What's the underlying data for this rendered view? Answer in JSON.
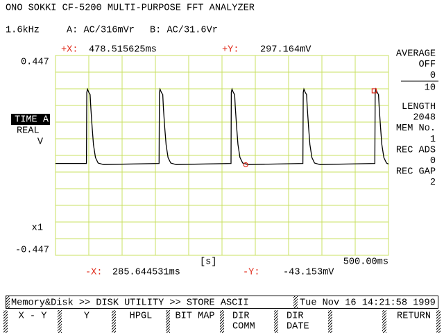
{
  "header": {
    "title": "ONO SOKKI CF-5200 MULTI-PURPOSE FFT ANALYZER",
    "settings": [
      "1.6kHz",
      "A: AC/316mVr",
      "B: AC/31.6Vr"
    ]
  },
  "cursor_plus": {
    "x_label": "+X:",
    "x": {
      "value": 478.515625,
      "label": "478.515625ms"
    },
    "y_label": "+Y:",
    "y": {
      "value": 0.297164,
      "label": "297.164mV"
    }
  },
  "cursor_minus": {
    "x_label": "-X:",
    "x": {
      "value": 285.644531,
      "label": "285.644531ms"
    },
    "y_label": "-Y:",
    "y": {
      "value": -0.043153,
      "label": "-43.153mV"
    }
  },
  "plot": {
    "ylim": [
      {
        "value": -0.447,
        "label": "-0.447"
      },
      {
        "value": 0.447,
        "label": "0.447"
      }
    ],
    "xlim": [
      0,
      {
        "value": 500,
        "label": "500.00ms"
      }
    ],
    "x_unit": "[s]",
    "channel": "TIME A",
    "mode": "REAL",
    "unit": "V",
    "scale": "x1",
    "trace": {
      "x": [
        0,
        46.5,
        47,
        48,
        50,
        52,
        53,
        55,
        57,
        60,
        64,
        72,
        155.5,
        156,
        157,
        159,
        161,
        162,
        164,
        166,
        169,
        173,
        181,
        263.5,
        264,
        265,
        267,
        269,
        270,
        272,
        274,
        277,
        281,
        289,
        371.5,
        372,
        373,
        375,
        377,
        378,
        380,
        382,
        385,
        389,
        397,
        479.5,
        480,
        481,
        483,
        485,
        486,
        488,
        490,
        493,
        497,
        500
      ],
      "y": [
        -0.037,
        -0.037,
        0.29,
        0.305,
        0.29,
        0.28,
        0.22,
        0.13,
        0.05,
        -0.01,
        -0.035,
        -0.042,
        -0.037,
        0.29,
        0.305,
        0.29,
        0.28,
        0.22,
        0.13,
        0.05,
        -0.01,
        -0.035,
        -0.042,
        -0.037,
        0.29,
        0.305,
        0.29,
        0.28,
        0.22,
        0.13,
        0.05,
        -0.01,
        -0.035,
        -0.042,
        -0.037,
        0.29,
        0.305,
        0.29,
        0.28,
        0.22,
        0.13,
        0.05,
        -0.01,
        -0.035,
        -0.042,
        -0.037,
        0.29,
        0.305,
        0.29,
        0.28,
        0.22,
        0.13,
        0.05,
        -0.01,
        -0.035,
        -0.04
      ]
    }
  },
  "side_panel": [
    "AVERAGE",
    "OFF",
    "0",
    "10",
    "LENGTH",
    "2048",
    "MEM No.",
    "1",
    "REC ADS",
    "0",
    "REC GAP",
    "2"
  ],
  "status": {
    "path": "Memory&Disk >> DISK UTILITY >> STORE ASCII",
    "datetime": "Tue Nov 16 14:21:58 1999"
  },
  "softkeys": [
    [
      "X - Y"
    ],
    [
      "Y"
    ],
    [
      "HPGL"
    ],
    [
      "BIT MAP"
    ],
    [
      "DIR",
      "COMM"
    ],
    [
      "DIR",
      "DATE"
    ],
    [
      "RETURN"
    ]
  ]
}
